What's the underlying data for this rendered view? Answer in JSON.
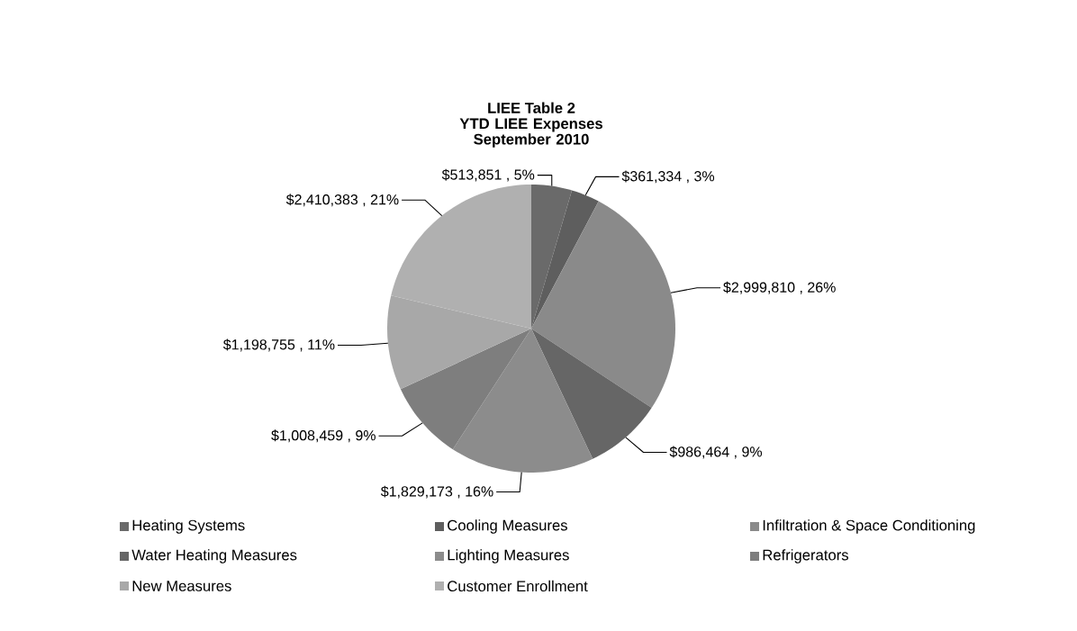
{
  "chart_data": {
    "type": "pie",
    "title": "LIEE Table 2",
    "subtitle": "YTD LIEE Expenses September 2010",
    "categories": [
      "Heating Systems",
      "Cooling Measures",
      "Infiltration & Space Conditioning",
      "Water Heating Measures",
      "Lighting Measures",
      "Refrigerators",
      "New Measures",
      "Customer Enrollment"
    ],
    "values": [
      513851,
      361334,
      2999810,
      986464,
      1829173,
      1008459,
      1198755,
      2410383
    ],
    "value_labels": [
      "$513,851 , 5%",
      "$361,334 , 3%",
      "$2,999,810 , 26%",
      "$986,464 , 9%",
      "$1,829,173 , 16%",
      "$1,008,459 , 9%",
      "$1,198,755 , 11%",
      "$2,410,383 , 21%"
    ],
    "colors": [
      "#6a6a6a",
      "#5e5e5e",
      "#8a8a8a",
      "#666666",
      "#8c8c8c",
      "#7e7e7e",
      "#a8a8a8",
      "#b0b0b0"
    ],
    "legend": "bottom"
  }
}
